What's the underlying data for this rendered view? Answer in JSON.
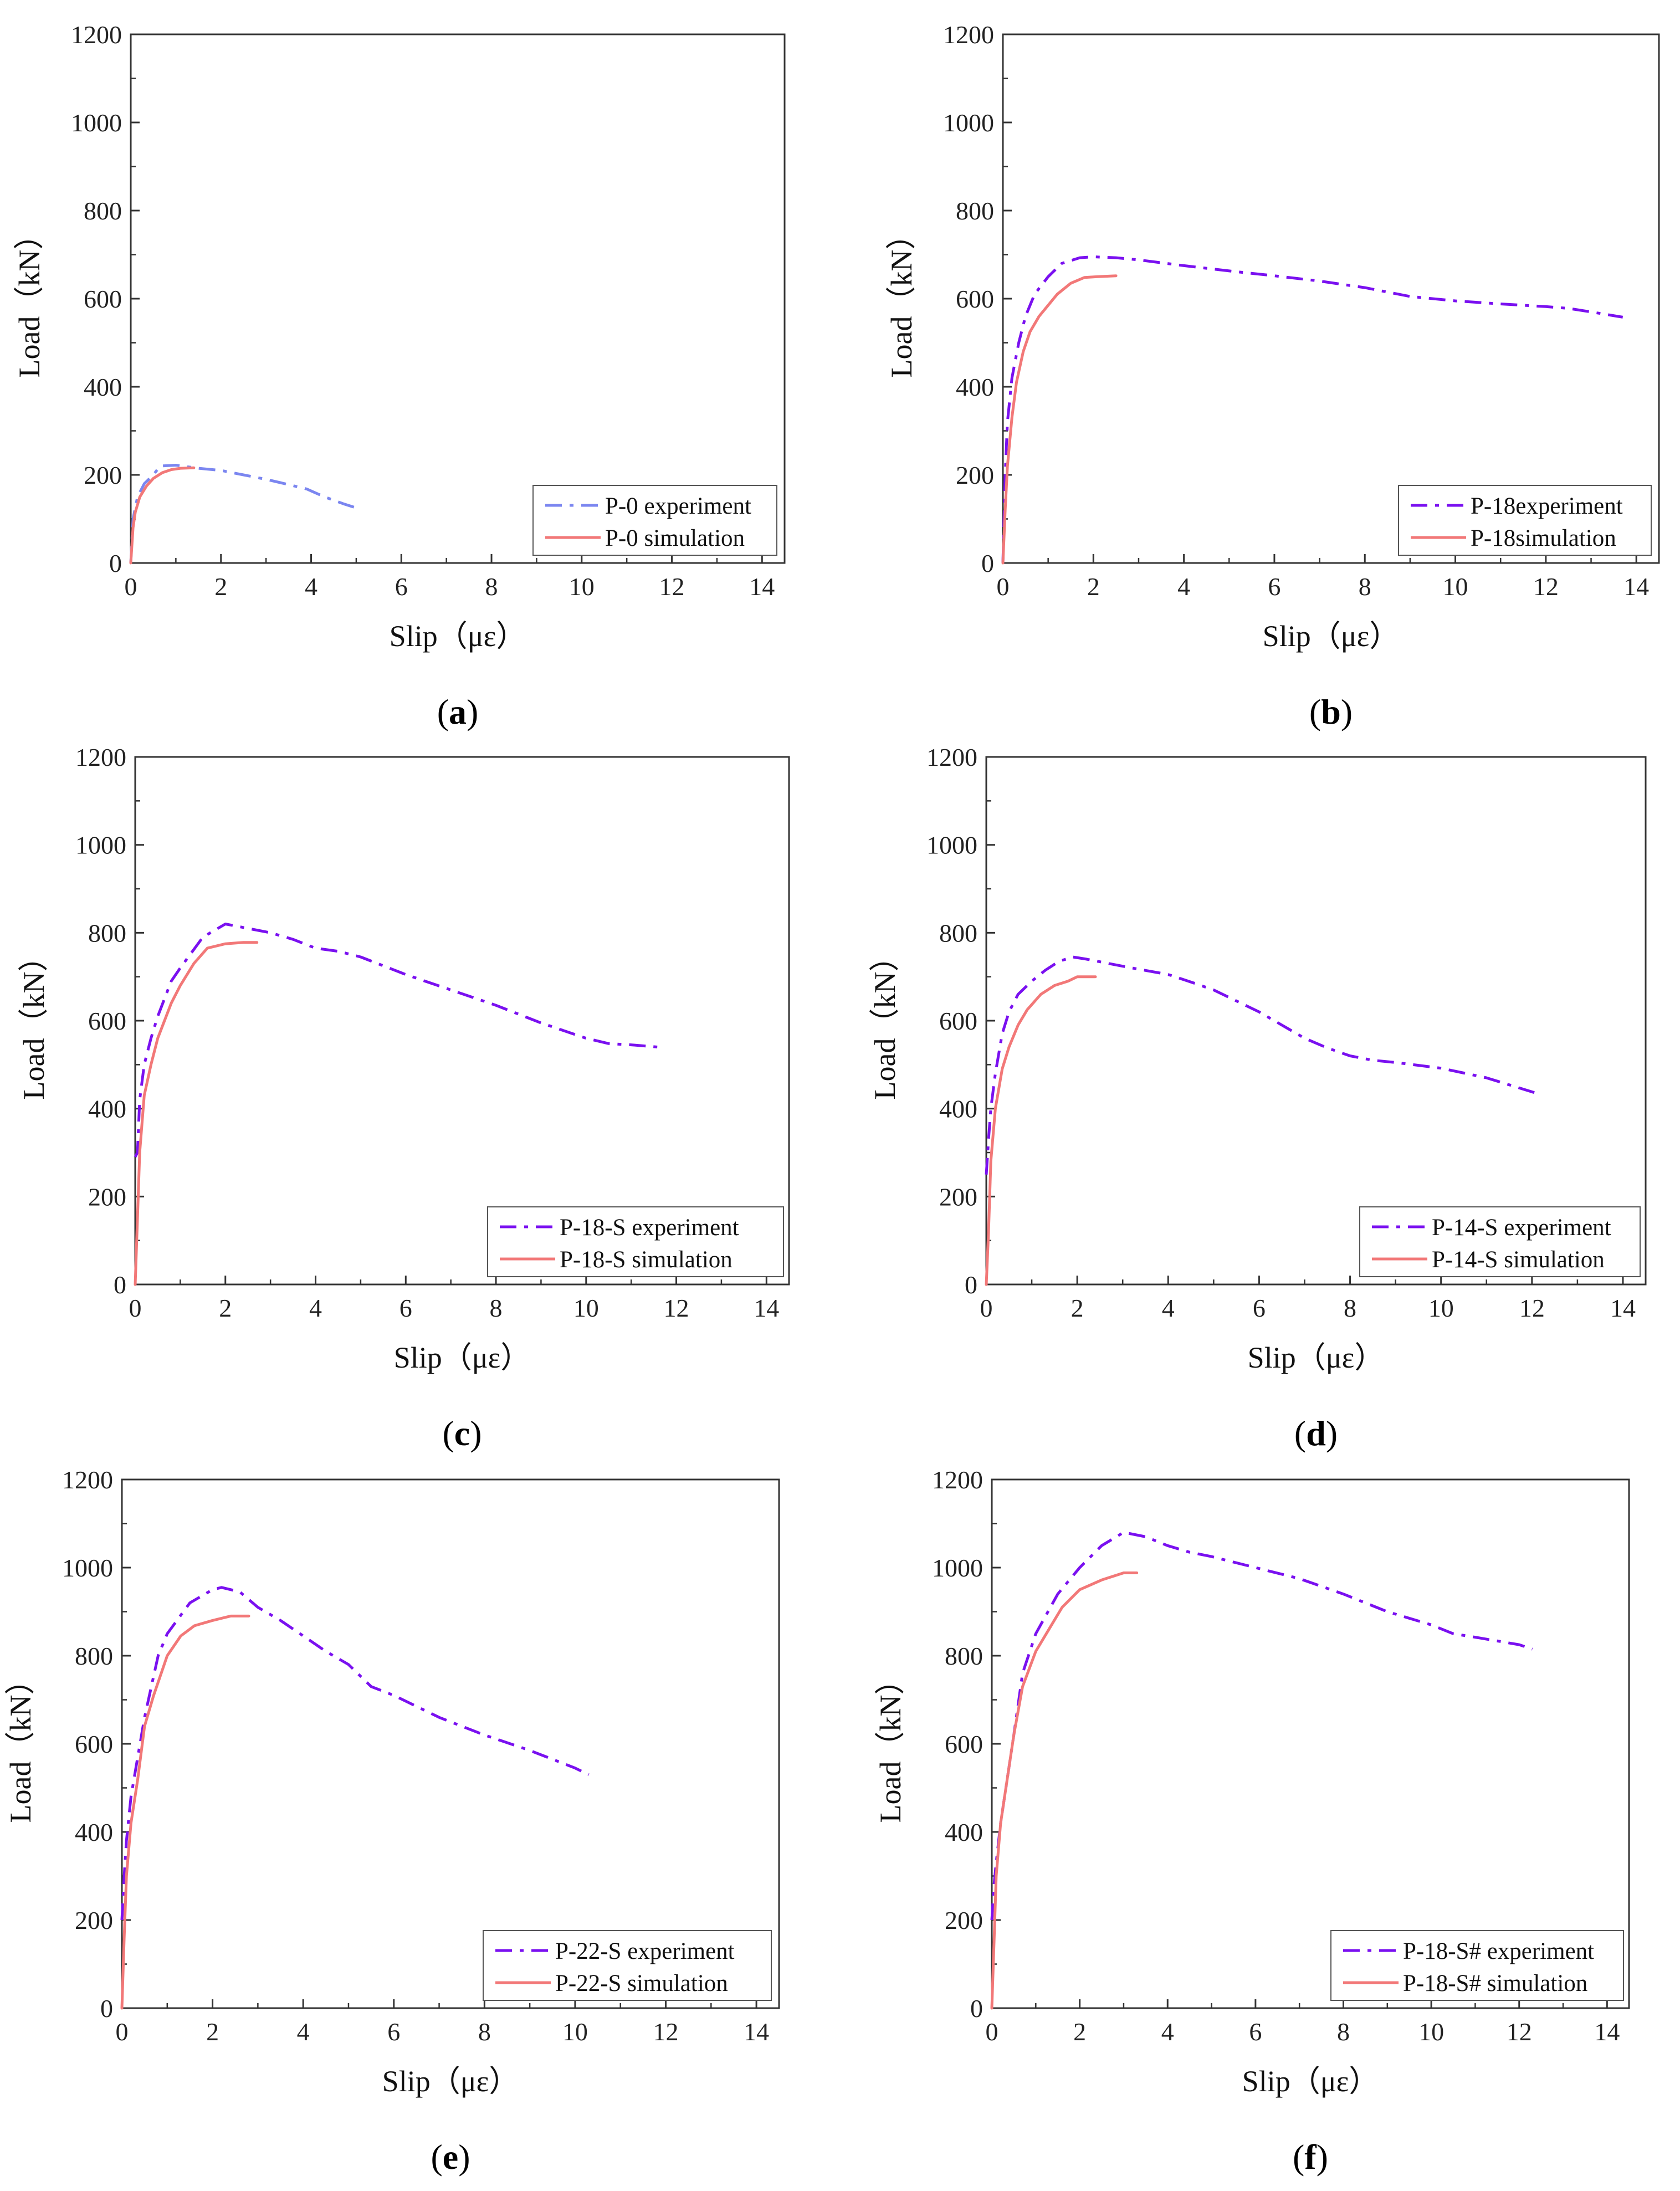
{
  "colors": {
    "p0_experiment": "#7b86f0",
    "experiment": "#7a10f0",
    "simulation": "#f27878",
    "axis": "#333333"
  },
  "chart_data": [
    {
      "id": "a",
      "panel_label": "a",
      "type": "line",
      "xlabel": "Slip（με）",
      "ylabel": "Load（kN）",
      "xlim": [
        0,
        14.5
      ],
      "ylim": [
        0,
        1200
      ],
      "xticks": [
        "0",
        "2",
        "4",
        "6",
        "8",
        "10",
        "12",
        "14"
      ],
      "yticks": [
        "0",
        "200",
        "400",
        "600",
        "800",
        "1000",
        "1200"
      ],
      "legend_position": "bottom-right",
      "series": [
        {
          "name": "P-0 experiment",
          "style": "dashdot",
          "color_key": "p0_experiment",
          "x": [
            0,
            0.05,
            0.15,
            0.3,
            0.5,
            0.65,
            1.0,
            1.5,
            2.0,
            2.5,
            3.0,
            3.5,
            3.9,
            4.3,
            4.7,
            5.0
          ],
          "y": [
            0,
            100,
            150,
            180,
            200,
            220,
            222,
            215,
            210,
            200,
            190,
            178,
            168,
            150,
            135,
            125
          ]
        },
        {
          "name": "P-0 simulation",
          "style": "solid",
          "color_key": "simulation",
          "x": [
            0,
            0.05,
            0.1,
            0.2,
            0.35,
            0.5,
            0.7,
            0.9,
            1.1,
            1.4
          ],
          "y": [
            0,
            80,
            115,
            150,
            175,
            192,
            205,
            212,
            215,
            216
          ]
        }
      ]
    },
    {
      "id": "b",
      "panel_label": "b",
      "type": "line",
      "xlabel": "Slip（με）",
      "ylabel": "Load（kN）",
      "xlim": [
        0,
        14.5
      ],
      "ylim": [
        0,
        1200
      ],
      "xticks": [
        "0",
        "2",
        "4",
        "6",
        "8",
        "10",
        "12",
        "14"
      ],
      "yticks": [
        "0",
        "200",
        "400",
        "600",
        "800",
        "1000",
        "1200"
      ],
      "legend_position": "bottom-right",
      "series": [
        {
          "name": "P-18experiment",
          "style": "dashdot",
          "color_key": "experiment",
          "x": [
            0,
            0.05,
            0.1,
            0.2,
            0.35,
            0.5,
            0.7,
            1.0,
            1.3,
            1.7,
            2.0,
            2.5,
            3.0,
            4.0,
            5.0,
            6.0,
            7.0,
            8.0,
            9.0,
            10.0,
            11.0,
            12.0,
            12.5,
            13.0,
            13.7
          ],
          "y": [
            0,
            200,
            320,
            420,
            500,
            560,
            610,
            650,
            680,
            693,
            695,
            693,
            688,
            675,
            663,
            652,
            640,
            625,
            605,
            595,
            588,
            582,
            578,
            570,
            558
          ]
        },
        {
          "name": "P-18simulation",
          "style": "solid",
          "color_key": "simulation",
          "x": [
            0,
            0.05,
            0.1,
            0.2,
            0.3,
            0.45,
            0.6,
            0.8,
            1.0,
            1.2,
            1.5,
            1.8,
            2.1,
            2.5
          ],
          "y": [
            0,
            120,
            220,
            330,
            410,
            480,
            525,
            560,
            585,
            610,
            635,
            648,
            650,
            652
          ]
        }
      ]
    },
    {
      "id": "c",
      "panel_label": "c",
      "type": "line",
      "xlabel": "Slip（με）",
      "ylabel": "Load（kN）",
      "xlim": [
        0,
        14.5
      ],
      "ylim": [
        0,
        1200
      ],
      "xticks": [
        "0",
        "2",
        "4",
        "6",
        "8",
        "10",
        "12",
        "14"
      ],
      "yticks": [
        "0",
        "200",
        "400",
        "600",
        "800",
        "1000",
        "1200"
      ],
      "legend_position": "bottom-right",
      "series": [
        {
          "name": "P-18-S experiment",
          "style": "dashdot",
          "color_key": "experiment",
          "x": [
            0,
            0.05,
            0.1,
            0.2,
            0.35,
            0.5,
            0.8,
            1.0,
            1.5,
            2.0,
            2.5,
            3.0,
            3.5,
            4.0,
            4.5,
            5.0,
            6.0,
            7.0,
            8.0,
            9.0,
            10.0,
            10.5,
            11.0,
            11.6
          ],
          "y": [
            290,
            300,
            420,
            500,
            560,
            610,
            690,
            720,
            790,
            820,
            810,
            800,
            785,
            765,
            758,
            745,
            705,
            670,
            635,
            595,
            560,
            548,
            545,
            540
          ]
        },
        {
          "name": "P-18-S simulation",
          "style": "solid",
          "color_key": "simulation",
          "x": [
            0,
            0.05,
            0.1,
            0.2,
            0.35,
            0.5,
            0.8,
            1.0,
            1.3,
            1.6,
            2.0,
            2.4,
            2.7
          ],
          "y": [
            0,
            150,
            300,
            430,
            500,
            560,
            640,
            680,
            730,
            765,
            775,
            778,
            778
          ]
        }
      ]
    },
    {
      "id": "d",
      "panel_label": "d",
      "type": "line",
      "xlabel": "Slip（με）",
      "ylabel": "Load（kN）",
      "xlim": [
        0,
        14.5
      ],
      "ylim": [
        0,
        1200
      ],
      "xticks": [
        "0",
        "2",
        "4",
        "6",
        "8",
        "10",
        "12",
        "14"
      ],
      "yticks": [
        "0",
        "200",
        "400",
        "600",
        "800",
        "1000",
        "1200"
      ],
      "legend_position": "bottom-right",
      "series": [
        {
          "name": "P-14-S experiment",
          "style": "dashdot",
          "color_key": "experiment",
          "x": [
            0,
            0.05,
            0.1,
            0.2,
            0.35,
            0.5,
            0.7,
            1.0,
            1.3,
            1.6,
            1.9,
            2.2,
            2.7,
            3.2,
            4.0,
            4.5,
            5.0,
            6.0,
            7.0,
            7.5,
            8.0,
            8.5,
            9.0,
            10.0,
            11.0,
            12.1
          ],
          "y": [
            250,
            330,
            400,
            480,
            570,
            620,
            660,
            690,
            715,
            735,
            745,
            740,
            730,
            720,
            705,
            688,
            670,
            620,
            560,
            538,
            520,
            510,
            505,
            492,
            470,
            435
          ]
        },
        {
          "name": "P-14-S simulation",
          "style": "solid",
          "color_key": "simulation",
          "x": [
            0,
            0.05,
            0.1,
            0.2,
            0.35,
            0.5,
            0.7,
            0.9,
            1.2,
            1.5,
            1.8,
            2.0,
            2.4
          ],
          "y": [
            0,
            120,
            280,
            400,
            490,
            540,
            590,
            625,
            660,
            680,
            690,
            700,
            700
          ]
        }
      ]
    },
    {
      "id": "e",
      "panel_label": "e",
      "type": "line",
      "xlabel": "Slip（με）",
      "ylabel": "Load（kN）",
      "xlim": [
        0,
        14.5
      ],
      "ylim": [
        0,
        1200
      ],
      "xticks": [
        "0",
        "2",
        "4",
        "6",
        "8",
        "10",
        "12",
        "14"
      ],
      "yticks": [
        "0",
        "200",
        "400",
        "600",
        "800",
        "1000",
        "1200"
      ],
      "legend_position": "bottom-right",
      "series": [
        {
          "name": "P-22-S experiment",
          "style": "dashdot",
          "color_key": "experiment",
          "x": [
            0,
            0.05,
            0.1,
            0.2,
            0.35,
            0.5,
            0.8,
            1.0,
            1.5,
            2.0,
            2.2,
            2.6,
            3.0,
            3.5,
            4.0,
            4.5,
            5.0,
            5.5,
            6.0,
            7.0,
            8.0,
            9.0,
            10.0,
            10.3
          ],
          "y": [
            200,
            300,
            380,
            480,
            570,
            660,
            800,
            850,
            920,
            950,
            955,
            945,
            910,
            880,
            845,
            810,
            780,
            730,
            710,
            660,
            620,
            585,
            545,
            530
          ]
        },
        {
          "name": "P-22-S simulation",
          "style": "solid",
          "color_key": "simulation",
          "x": [
            0,
            0.05,
            0.1,
            0.2,
            0.35,
            0.5,
            0.7,
            1.0,
            1.3,
            1.6,
            2.0,
            2.4,
            2.8
          ],
          "y": [
            0,
            160,
            300,
            420,
            520,
            640,
            710,
            800,
            845,
            868,
            880,
            890,
            890
          ]
        }
      ]
    },
    {
      "id": "f",
      "panel_label": "f",
      "type": "line",
      "xlabel": "Slip（με）",
      "ylabel": "Load（kN）",
      "xlim": [
        0,
        14.5
      ],
      "ylim": [
        0,
        1200
      ],
      "xticks": [
        "0",
        "2",
        "4",
        "6",
        "8",
        "10",
        "12",
        "14"
      ],
      "yticks": [
        "0",
        "200",
        "400",
        "600",
        "800",
        "1000",
        "1200"
      ],
      "legend_position": "bottom-right",
      "series": [
        {
          "name": "P-18-S# experiment",
          "style": "dashdot",
          "color_key": "experiment",
          "x": [
            0,
            0.05,
            0.1,
            0.2,
            0.35,
            0.5,
            0.7,
            1.0,
            1.5,
            2.0,
            2.5,
            3.0,
            3.5,
            4.0,
            4.5,
            5.0,
            6.0,
            7.0,
            8.0,
            9.0,
            10.0,
            10.5,
            11.0,
            12.0,
            12.3
          ],
          "y": [
            200,
            280,
            330,
            420,
            520,
            620,
            760,
            850,
            940,
            1000,
            1050,
            1080,
            1070,
            1050,
            1035,
            1025,
            1000,
            975,
            940,
            900,
            870,
            850,
            842,
            825,
            815
          ]
        },
        {
          "name": "P-18-S# simulation",
          "style": "solid",
          "color_key": "simulation",
          "x": [
            0,
            0.05,
            0.1,
            0.2,
            0.35,
            0.5,
            0.7,
            1.0,
            1.3,
            1.6,
            2.0,
            2.5,
            3.0,
            3.3
          ],
          "y": [
            0,
            150,
            300,
            420,
            520,
            620,
            730,
            810,
            860,
            910,
            950,
            972,
            988,
            988
          ]
        }
      ]
    }
  ]
}
